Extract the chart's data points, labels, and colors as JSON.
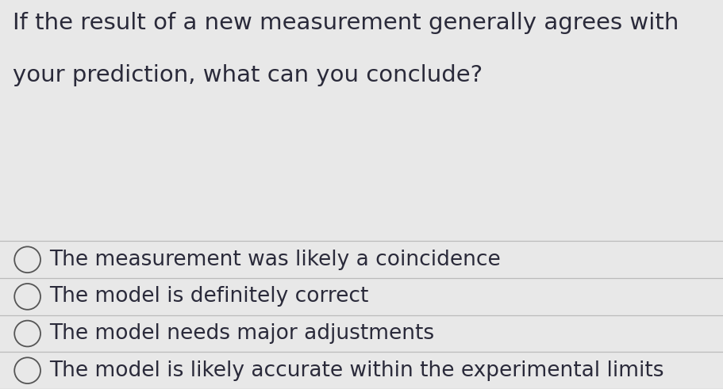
{
  "question_line1": "If the result of a new measurement generally agrees with",
  "question_line2": "your prediction, what can you conclude?",
  "options": [
    "The measurement was likely a coincidence",
    "The model is definitely correct",
    "The model needs major adjustments",
    "The model is likely accurate within the experimental limits"
  ],
  "background_color": "#e8e8e8",
  "question_color": "#2a2a3a",
  "option_color": "#2a2a3a",
  "divider_color": "#bbbbbb",
  "question_fontsize": 21,
  "option_fontsize": 19,
  "circle_color": "#555555"
}
